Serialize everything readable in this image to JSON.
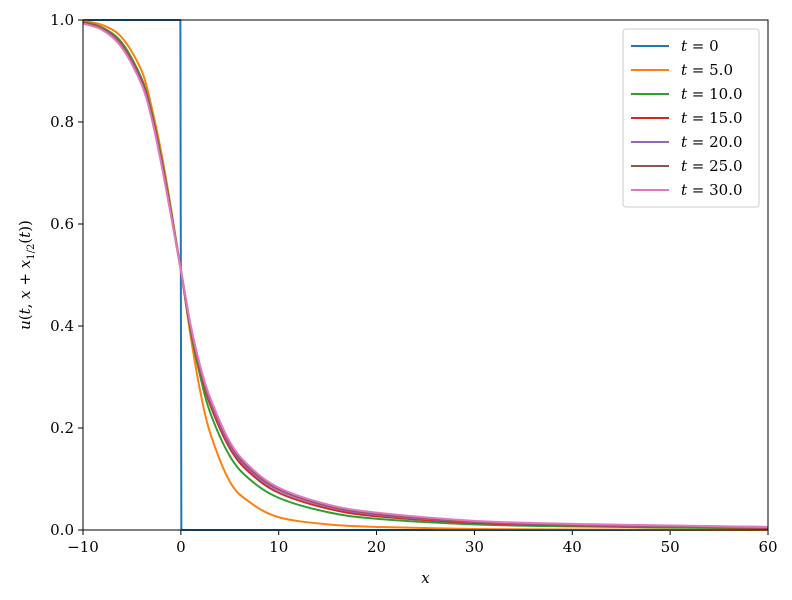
{
  "chart_data": {
    "type": "line",
    "title": "",
    "xlabel": "x",
    "ylabel": "u(t, x + x_{1/2}(t))",
    "xlim": [
      -10,
      60
    ],
    "ylim": [
      0.0,
      1.0
    ],
    "xticks": [
      -10,
      0,
      10,
      20,
      30,
      40,
      50,
      60
    ],
    "yticks": [
      0.0,
      0.2,
      0.4,
      0.6,
      0.8,
      1.0
    ],
    "xtick_labels": [
      "−10",
      "0",
      "10",
      "20",
      "30",
      "40",
      "50",
      "60"
    ],
    "ytick_labels": [
      "0.0",
      "0.2",
      "0.4",
      "0.6",
      "0.8",
      "1.0"
    ],
    "grid": false,
    "legend_position": "top-right",
    "series": [
      {
        "name": "t = 0",
        "color": "#1f77b4",
        "x": [
          -10,
          -0.05,
          0.05,
          60
        ],
        "y": [
          1.0,
          1.0,
          0.0,
          0.0
        ]
      },
      {
        "name": "t = 5.0",
        "color": "#ff7f0e",
        "x": [
          -10,
          -8,
          -6,
          -4,
          -3,
          -2,
          -1,
          0,
          1,
          2,
          3,
          5,
          7,
          10,
          15,
          20,
          30,
          40,
          60
        ],
        "y": [
          0.998,
          0.99,
          0.965,
          0.9,
          0.83,
          0.74,
          0.63,
          0.51,
          0.38,
          0.27,
          0.19,
          0.095,
          0.055,
          0.025,
          0.011,
          0.006,
          0.002,
          0.001,
          0.0
        ]
      },
      {
        "name": "t = 10.0",
        "color": "#2ca02c",
        "x": [
          -10,
          -8,
          -6,
          -4,
          -3,
          -2,
          -1,
          0,
          1,
          2,
          3,
          5,
          7,
          10,
          15,
          20,
          30,
          40,
          60
        ],
        "y": [
          0.996,
          0.985,
          0.955,
          0.885,
          0.82,
          0.73,
          0.625,
          0.51,
          0.39,
          0.3,
          0.23,
          0.145,
          0.1,
          0.063,
          0.035,
          0.022,
          0.011,
          0.007,
          0.003
        ]
      },
      {
        "name": "t = 15.0",
        "color": "#d62728",
        "x": [
          -10,
          -8,
          -6,
          -4,
          -3,
          -2,
          -1,
          0,
          1,
          2,
          3,
          5,
          7,
          10,
          15,
          20,
          30,
          40,
          60
        ],
        "y": [
          0.995,
          0.983,
          0.95,
          0.88,
          0.815,
          0.725,
          0.62,
          0.51,
          0.395,
          0.31,
          0.245,
          0.16,
          0.113,
          0.073,
          0.042,
          0.027,
          0.014,
          0.009,
          0.004
        ]
      },
      {
        "name": "t = 20.0",
        "color": "#9467bd",
        "x": [
          -10,
          -8,
          -6,
          -4,
          -3,
          -2,
          -1,
          0,
          1,
          2,
          3,
          5,
          7,
          10,
          15,
          20,
          30,
          40,
          60
        ],
        "y": [
          0.994,
          0.982,
          0.948,
          0.877,
          0.812,
          0.722,
          0.618,
          0.51,
          0.398,
          0.315,
          0.252,
          0.166,
          0.118,
          0.078,
          0.046,
          0.03,
          0.016,
          0.01,
          0.005
        ]
      },
      {
        "name": "t = 25.0",
        "color": "#8c564b",
        "x": [
          -10,
          -8,
          -6,
          -4,
          -3,
          -2,
          -1,
          0,
          1,
          2,
          3,
          5,
          7,
          10,
          15,
          20,
          30,
          40,
          60
        ],
        "y": [
          0.994,
          0.981,
          0.946,
          0.875,
          0.81,
          0.72,
          0.617,
          0.51,
          0.4,
          0.318,
          0.256,
          0.17,
          0.122,
          0.081,
          0.048,
          0.032,
          0.017,
          0.011,
          0.006
        ]
      },
      {
        "name": "t = 30.0",
        "color": "#e377c2",
        "x": [
          -10,
          -8,
          -6,
          -4,
          -3,
          -2,
          -1,
          0,
          1,
          2,
          3,
          5,
          7,
          10,
          15,
          20,
          30,
          40,
          60
        ],
        "y": [
          0.993,
          0.98,
          0.945,
          0.873,
          0.808,
          0.718,
          0.616,
          0.51,
          0.402,
          0.32,
          0.259,
          0.173,
          0.125,
          0.083,
          0.05,
          0.034,
          0.018,
          0.012,
          0.006
        ]
      }
    ]
  }
}
